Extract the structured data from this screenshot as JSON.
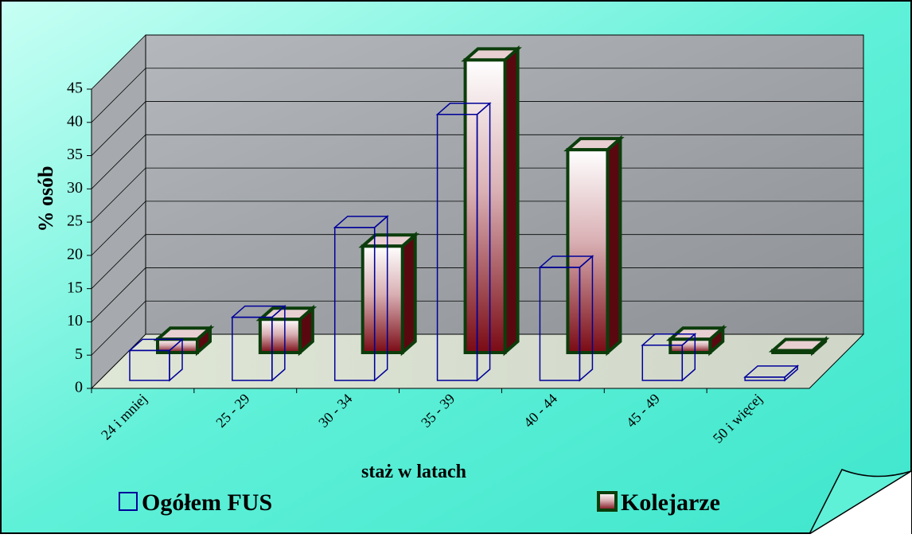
{
  "chart_data": {
    "type": "bar3d",
    "categories": [
      "24 i mniej",
      "25 - 29",
      "30 - 34",
      "35 - 39",
      "40 - 44",
      "45 - 49",
      "50 i więcej"
    ],
    "series": [
      {
        "name": "Ogółem FUS",
        "color": "#000099",
        "values": [
          4.5,
          9.5,
          23,
          40,
          17,
          5.3,
          0.5
        ]
      },
      {
        "name": "Kolejarze",
        "color": "#7a0a14",
        "values": [
          2,
          5,
          16,
          44,
          30.5,
          2,
          0.3
        ]
      }
    ],
    "ylim": [
      0,
      45
    ],
    "yticks": [
      0,
      5,
      10,
      15,
      20,
      25,
      30,
      35,
      40,
      45
    ],
    "y_label": "% osób",
    "x_label": "staż w latach",
    "grid": true
  }
}
